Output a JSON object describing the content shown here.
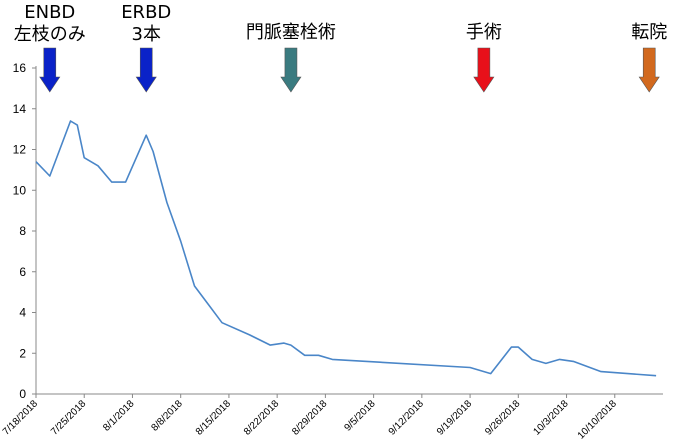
{
  "chart_data": {
    "type": "line",
    "title": "",
    "xlabel": "",
    "ylabel": "",
    "xlim": [
      "2018-07-18",
      "2018-10-17"
    ],
    "ylim": [
      0,
      16
    ],
    "y_ticks": [
      0,
      2,
      4,
      6,
      8,
      10,
      12,
      14,
      16
    ],
    "x_ticks": [
      "7/18/2018",
      "7/25/2018",
      "8/1/2018",
      "8/8/2018",
      "8/15/2018",
      "8/22/2018",
      "8/29/2018",
      "9/5/2018",
      "9/12/2018",
      "9/19/2018",
      "9/26/2018",
      "10/3/2018",
      "10/10/2018"
    ],
    "grid": false,
    "legend": "none",
    "series": [
      {
        "color": "#4a86c8",
        "points": [
          {
            "x": "2018-07-18",
            "y": 11.4
          },
          {
            "x": "2018-07-20",
            "y": 10.7
          },
          {
            "x": "2018-07-23",
            "y": 13.4
          },
          {
            "x": "2018-07-24",
            "y": 13.2
          },
          {
            "x": "2018-07-25",
            "y": 11.6
          },
          {
            "x": "2018-07-27",
            "y": 11.2
          },
          {
            "x": "2018-07-29",
            "y": 10.4
          },
          {
            "x": "2018-07-31",
            "y": 10.4
          },
          {
            "x": "2018-08-03",
            "y": 12.7
          },
          {
            "x": "2018-08-04",
            "y": 11.9
          },
          {
            "x": "2018-08-06",
            "y": 9.4
          },
          {
            "x": "2018-08-08",
            "y": 7.5
          },
          {
            "x": "2018-08-10",
            "y": 5.3
          },
          {
            "x": "2018-08-12",
            "y": 4.4
          },
          {
            "x": "2018-08-14",
            "y": 3.5
          },
          {
            "x": "2018-08-18",
            "y": 2.9
          },
          {
            "x": "2018-08-21",
            "y": 2.4
          },
          {
            "x": "2018-08-23",
            "y": 2.5
          },
          {
            "x": "2018-08-24",
            "y": 2.4
          },
          {
            "x": "2018-08-26",
            "y": 1.9
          },
          {
            "x": "2018-08-28",
            "y": 1.9
          },
          {
            "x": "2018-08-30",
            "y": 1.7
          },
          {
            "x": "2018-09-19",
            "y": 1.3
          },
          {
            "x": "2018-09-22",
            "y": 1.0
          },
          {
            "x": "2018-09-25",
            "y": 2.3
          },
          {
            "x": "2018-09-26",
            "y": 2.3
          },
          {
            "x": "2018-09-28",
            "y": 1.7
          },
          {
            "x": "2018-09-30",
            "y": 1.5
          },
          {
            "x": "2018-10-02",
            "y": 1.7
          },
          {
            "x": "2018-10-04",
            "y": 1.6
          },
          {
            "x": "2018-10-08",
            "y": 1.1
          },
          {
            "x": "2018-10-16",
            "y": 0.9
          }
        ]
      }
    ],
    "annotations": [
      {
        "lines": [
          "ENBD",
          "左枝のみ"
        ],
        "x": "2018-07-20",
        "arrow_color": "#0a22c8"
      },
      {
        "lines": [
          "ERBD",
          "3本"
        ],
        "x": "2018-08-03",
        "arrow_color": "#0a22c8"
      },
      {
        "lines": [
          "門脈塞栓術"
        ],
        "x": "2018-08-24",
        "arrow_color": "#3a7b80"
      },
      {
        "lines": [
          "手術"
        ],
        "x": "2018-09-21",
        "arrow_color": "#e8101a"
      },
      {
        "lines": [
          "転院"
        ],
        "x": "2018-10-15",
        "arrow_color": "#d2691e"
      }
    ]
  }
}
